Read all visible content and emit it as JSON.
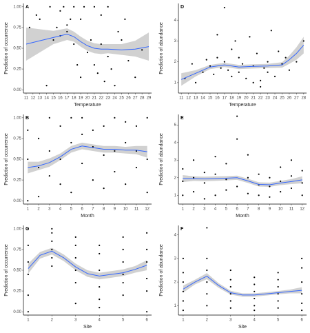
{
  "chart_data": [
    {
      "type": "scatter",
      "panel": "A",
      "xlabel": "Temperature",
      "ylabel": "Prediction of occurrence",
      "xlim": [
        10.6,
        29.4
      ],
      "ylim": [
        -0.04,
        1.04
      ],
      "xticks": [
        11,
        12,
        13,
        14,
        15,
        16,
        17,
        18,
        19,
        20,
        21,
        22,
        23,
        24,
        25,
        26,
        27,
        28,
        29
      ],
      "yticks": [
        {
          "value": 0,
          "label": "0.00"
        },
        0.25,
        {
          "value": 0.5,
          "label": "0.50"
        },
        0.75,
        {
          "value": 1,
          "label": "1.00"
        }
      ],
      "point_color": "#000000",
      "line_color": "#3366ff",
      "band_color": "#bebebe",
      "points": {
        "x": [
          11.5,
          12.5,
          13,
          14,
          14.5,
          15,
          15.5,
          16,
          16,
          16.5,
          17,
          17,
          17.5,
          18,
          18,
          18.5,
          19,
          19,
          19.5,
          20,
          20.5,
          21,
          21,
          21.5,
          22,
          22,
          22.5,
          23,
          23,
          23.5,
          24,
          24.5,
          25,
          25.5,
          26,
          27,
          28
        ],
        "y": [
          0.75,
          0.9,
          0.85,
          0.05,
          1.0,
          0.6,
          0.75,
          0.95,
          0.65,
          1.0,
          0.78,
          0.7,
          0.85,
          1.0,
          0.55,
          0.3,
          0.15,
          0.85,
          1.0,
          0.45,
          0.6,
          1.0,
          0.3,
          0.2,
          0.55,
          0.9,
          0.1,
          1.0,
          0.4,
          0.25,
          0.05,
          0.7,
          0.6,
          0.85,
          0.35,
          0.15,
          0.48
        ]
      },
      "smooth": {
        "x": [
          11,
          13,
          15,
          17,
          18,
          19,
          20,
          21,
          22,
          23,
          25,
          27,
          29
        ],
        "y": [
          0.55,
          0.59,
          0.63,
          0.67,
          0.64,
          0.58,
          0.53,
          0.5,
          0.49,
          0.49,
          0.48,
          0.49,
          0.52
        ],
        "lower": [
          0.35,
          0.45,
          0.55,
          0.6,
          0.58,
          0.52,
          0.47,
          0.44,
          0.43,
          0.44,
          0.42,
          0.4,
          0.35
        ],
        "upper": [
          0.75,
          0.73,
          0.71,
          0.74,
          0.7,
          0.64,
          0.59,
          0.56,
          0.55,
          0.55,
          0.55,
          0.59,
          0.69
        ]
      }
    },
    {
      "type": "scatter",
      "panel": "B",
      "xlabel": "Month",
      "ylabel": "Prediction of occurrence",
      "xlim": [
        0.6,
        12.4
      ],
      "ylim": [
        -0.04,
        1.04
      ],
      "xticks": [
        1,
        2,
        3,
        4,
        5,
        6,
        7,
        8,
        9,
        10,
        11,
        12
      ],
      "yticks": [
        {
          "value": 0,
          "label": "0.00"
        },
        0.25,
        {
          "value": 0.5,
          "label": "0.50"
        },
        0.75,
        {
          "value": 1,
          "label": "1.00"
        }
      ],
      "point_color": "#000000",
      "line_color": "#3366ff",
      "band_color": "#bebebe",
      "points": {
        "x": [
          1,
          1,
          1,
          2,
          2,
          2,
          3,
          3,
          3,
          4,
          4,
          4,
          5,
          5,
          5,
          6,
          6,
          6,
          7,
          7,
          7,
          8,
          8,
          8,
          9,
          9,
          9,
          10,
          10,
          10,
          11,
          11,
          11,
          12,
          12,
          12
        ],
        "y": [
          0.0,
          0.5,
          0.85,
          0.05,
          0.4,
          0.75,
          0.3,
          0.6,
          1.0,
          0.2,
          0.5,
          0.9,
          0.1,
          0.7,
          1.0,
          0.45,
          0.8,
          1.0,
          0.25,
          0.65,
          0.85,
          0.15,
          0.55,
          0.9,
          0.35,
          0.6,
          1.0,
          0.2,
          0.7,
          0.95,
          0.4,
          0.6,
          0.9,
          0.1,
          0.5,
          1.0
        ]
      },
      "smooth": {
        "x": [
          1,
          2,
          3,
          4,
          5,
          6,
          7,
          8,
          9,
          10,
          11,
          12
        ],
        "y": [
          0.4,
          0.42,
          0.46,
          0.53,
          0.62,
          0.66,
          0.64,
          0.62,
          0.62,
          0.61,
          0.61,
          0.59
        ],
        "lower": [
          0.33,
          0.37,
          0.41,
          0.49,
          0.58,
          0.62,
          0.6,
          0.58,
          0.58,
          0.57,
          0.56,
          0.52
        ],
        "upper": [
          0.47,
          0.47,
          0.51,
          0.57,
          0.66,
          0.7,
          0.68,
          0.66,
          0.66,
          0.65,
          0.66,
          0.66
        ]
      }
    },
    {
      "type": "scatter",
      "panel": "C",
      "xlabel": "Site",
      "ylabel": "Prediction of occurrence",
      "xlim": [
        0.8,
        6.2
      ],
      "ylim": [
        -0.04,
        1.04
      ],
      "xticks": [
        1,
        2,
        3,
        4,
        5,
        6
      ],
      "yticks": [
        {
          "value": 0,
          "label": "0.00"
        },
        0.25,
        {
          "value": 0.5,
          "label": "0.50"
        },
        0.75,
        {
          "value": 1,
          "label": "1.00"
        }
      ],
      "point_color": "#000000",
      "line_color": "#3366ff",
      "band_color": "#bebebe",
      "points": {
        "x": [
          1,
          1,
          1,
          1,
          1,
          1,
          2,
          2,
          2,
          2,
          2,
          2,
          3,
          3,
          3,
          3,
          3,
          3,
          4,
          4,
          4,
          4,
          4,
          4,
          5,
          5,
          5,
          5,
          5,
          5,
          6,
          6,
          6,
          6,
          6,
          6
        ],
        "y": [
          0.0,
          0.2,
          0.45,
          0.6,
          0.8,
          1.0,
          0.55,
          0.65,
          0.75,
          0.85,
          0.95,
          1.0,
          0.1,
          0.35,
          0.5,
          0.65,
          0.8,
          0.9,
          0.05,
          0.15,
          0.3,
          0.5,
          0.7,
          0.8,
          0.2,
          0.35,
          0.45,
          0.6,
          0.75,
          0.9,
          0.0,
          0.25,
          0.4,
          0.6,
          0.75,
          0.95
        ]
      },
      "smooth": {
        "x": [
          1,
          1.5,
          2,
          2.5,
          3,
          3.5,
          4,
          4.5,
          5,
          5.5,
          6
        ],
        "y": [
          0.52,
          0.68,
          0.73,
          0.65,
          0.54,
          0.46,
          0.43,
          0.45,
          0.47,
          0.51,
          0.56
        ],
        "lower": [
          0.46,
          0.64,
          0.69,
          0.61,
          0.5,
          0.42,
          0.39,
          0.41,
          0.43,
          0.47,
          0.5
        ],
        "upper": [
          0.58,
          0.72,
          0.77,
          0.69,
          0.58,
          0.5,
          0.47,
          0.49,
          0.51,
          0.55,
          0.62
        ]
      }
    },
    {
      "type": "scatter",
      "panel": "D",
      "xlabel": "Temperature",
      "ylabel": "Prediction of abundance",
      "xlim": [
        10.6,
        28.4
      ],
      "ylim": [
        0.5,
        4.8
      ],
      "xticks": [
        11,
        12,
        13,
        14,
        15,
        16,
        17,
        18,
        19,
        20,
        21,
        22,
        23,
        24,
        25,
        26,
        27,
        28
      ],
      "yticks": [
        1,
        2,
        3,
        4
      ],
      "point_color": "#000000",
      "line_color": "#3366ff",
      "band_color": "#bebebe",
      "points": {
        "x": [
          11.5,
          12.5,
          13,
          14,
          14.5,
          15,
          15.5,
          16,
          16,
          16.5,
          17,
          17,
          17.5,
          18,
          18,
          18.5,
          19,
          19,
          19.5,
          20,
          20.5,
          21,
          21,
          21.5,
          22,
          22,
          22.5,
          23,
          23,
          23.5,
          24,
          24.5,
          25,
          25.5,
          26,
          27,
          28
        ],
        "y": [
          1.2,
          1.9,
          1.0,
          1.5,
          2.1,
          1.8,
          1.4,
          2.2,
          3.3,
          1.7,
          4.6,
          2.0,
          1.6,
          2.6,
          1.3,
          3.0,
          1.5,
          2.2,
          1.9,
          1.2,
          3.2,
          1.8,
          1.0,
          2.4,
          1.1,
          0.8,
          1.7,
          1.5,
          2.0,
          3.5,
          1.3,
          2.5,
          1.9,
          2.2,
          1.6,
          2.0,
          3.0
        ]
      },
      "smooth": {
        "x": [
          11,
          13,
          15,
          17,
          19,
          21,
          23,
          25,
          26,
          27,
          28
        ],
        "y": [
          1.15,
          1.45,
          1.75,
          1.85,
          1.75,
          1.78,
          1.8,
          1.85,
          2.1,
          2.4,
          2.8
        ],
        "lower": [
          0.85,
          1.3,
          1.65,
          1.75,
          1.65,
          1.68,
          1.7,
          1.72,
          1.9,
          2.1,
          2.4
        ],
        "upper": [
          1.45,
          1.6,
          1.85,
          1.95,
          1.85,
          1.88,
          1.9,
          1.98,
          2.3,
          2.7,
          3.2
        ]
      }
    },
    {
      "type": "scatter",
      "panel": "E",
      "xlabel": "Month",
      "ylabel": "Prediction of abundance",
      "xlim": [
        0.6,
        12.4
      ],
      "ylim": [
        0.5,
        5.6
      ],
      "xticks": [
        1,
        2,
        3,
        4,
        5,
        6,
        7,
        8,
        9,
        10,
        11,
        12
      ],
      "yticks": [
        1,
        2,
        3,
        4,
        5
      ],
      "point_color": "#000000",
      "line_color": "#3366ff",
      "band_color": "#bebebe",
      "points": {
        "x": [
          1,
          1,
          1,
          2,
          2,
          2,
          3,
          3,
          3,
          4,
          4,
          4,
          5,
          5,
          5,
          6,
          6,
          6,
          7,
          7,
          7,
          8,
          8,
          8,
          9,
          9,
          9,
          10,
          10,
          10,
          11,
          11,
          11,
          12,
          12,
          12
        ],
        "y": [
          1.0,
          1.8,
          2.5,
          1.2,
          2.0,
          3.0,
          0.8,
          1.7,
          2.3,
          1.0,
          2.2,
          3.2,
          1.3,
          1.9,
          2.8,
          1.5,
          4.2,
          5.5,
          1.1,
          2.0,
          3.3,
          1.0,
          1.6,
          2.2,
          0.9,
          1.5,
          2.0,
          1.2,
          1.8,
          2.6,
          1.4,
          2.1,
          3.0,
          1.0,
          1.7,
          2.4
        ]
      },
      "smooth": {
        "x": [
          1,
          2,
          3,
          4,
          5,
          6,
          7,
          8,
          9,
          10,
          11,
          12
        ],
        "y": [
          1.95,
          1.95,
          1.93,
          1.95,
          1.97,
          2.0,
          1.82,
          1.62,
          1.6,
          1.7,
          1.78,
          1.88
        ],
        "lower": [
          1.75,
          1.82,
          1.8,
          1.82,
          1.85,
          1.88,
          1.7,
          1.5,
          1.48,
          1.58,
          1.64,
          1.68
        ],
        "upper": [
          2.15,
          2.08,
          2.06,
          2.08,
          2.09,
          2.12,
          1.94,
          1.74,
          1.72,
          1.82,
          1.92,
          2.08
        ]
      }
    },
    {
      "type": "scatter",
      "panel": "F",
      "xlabel": "Site",
      "ylabel": "Prediction of abundance",
      "xlim": [
        0.8,
        6.2
      ],
      "ylim": [
        0.6,
        4.4
      ],
      "xticks": [
        1,
        2,
        3,
        4,
        5,
        6
      ],
      "yticks": [
        1,
        2,
        3,
        4
      ],
      "point_color": "#000000",
      "line_color": "#3366ff",
      "band_color": "#bebebe",
      "points": {
        "x": [
          1,
          1,
          1,
          1,
          1,
          1,
          2,
          2,
          2,
          2,
          2,
          2,
          3,
          3,
          3,
          3,
          3,
          3,
          4,
          4,
          4,
          4,
          4,
          4,
          5,
          5,
          5,
          5,
          5,
          5,
          6,
          6,
          6,
          6,
          6,
          6
        ],
        "y": [
          0.8,
          1.2,
          1.6,
          2.0,
          2.4,
          3.0,
          1.0,
          1.5,
          2.0,
          2.5,
          3.0,
          4.3,
          0.9,
          1.2,
          1.5,
          1.8,
          2.1,
          2.5,
          0.8,
          1.0,
          1.3,
          1.6,
          1.9,
          2.2,
          0.9,
          1.2,
          1.5,
          1.8,
          2.1,
          2.4,
          0.8,
          1.1,
          1.5,
          2.0,
          2.6,
          3.0
        ]
      },
      "smooth": {
        "x": [
          1,
          1.5,
          2,
          2.5,
          3,
          3.5,
          4,
          4.5,
          5,
          5.5,
          6
        ],
        "y": [
          1.7,
          2.0,
          2.25,
          1.85,
          1.55,
          1.45,
          1.45,
          1.5,
          1.55,
          1.6,
          1.65
        ],
        "lower": [
          1.55,
          1.9,
          2.12,
          1.75,
          1.47,
          1.38,
          1.38,
          1.43,
          1.48,
          1.52,
          1.52
        ],
        "upper": [
          1.85,
          2.1,
          2.38,
          1.95,
          1.63,
          1.52,
          1.52,
          1.57,
          1.62,
          1.68,
          1.78
        ]
      }
    }
  ]
}
